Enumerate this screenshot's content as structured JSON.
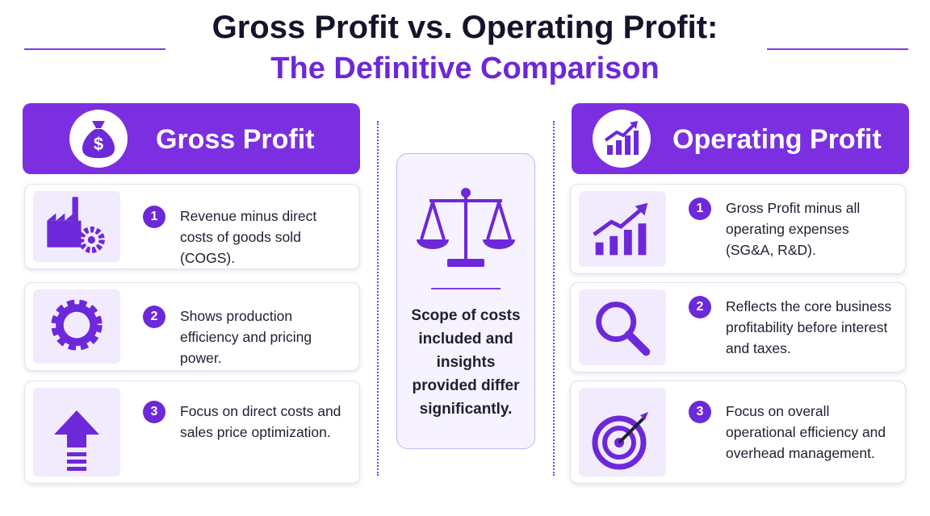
{
  "title": "Gross Profit vs. Operating Profit:",
  "subtitle": "The Definitive Comparison",
  "left": {
    "heading": "Gross Profit",
    "items": [
      {
        "number": 1,
        "text": "Revenue minus direct costs of goods sold (COGS)."
      },
      {
        "number": 2,
        "text": "Shows production efficiency and pricing power."
      },
      {
        "number": 3,
        "text": "Focus on direct costs and sales price optimization."
      }
    ]
  },
  "center": {
    "text": "Scope of costs included and insights provided differ significantly."
  },
  "right": {
    "heading": "Operating Profit",
    "items": [
      {
        "number": 1,
        "text": "Gross Profit minus all operating expenses (SG&A, R&D)."
      },
      {
        "number": 2,
        "text": "Reflects the core business profitability before interest and taxes."
      },
      {
        "number": 3,
        "text": "Focus on overall operational efficiency and overhead management."
      }
    ]
  }
}
